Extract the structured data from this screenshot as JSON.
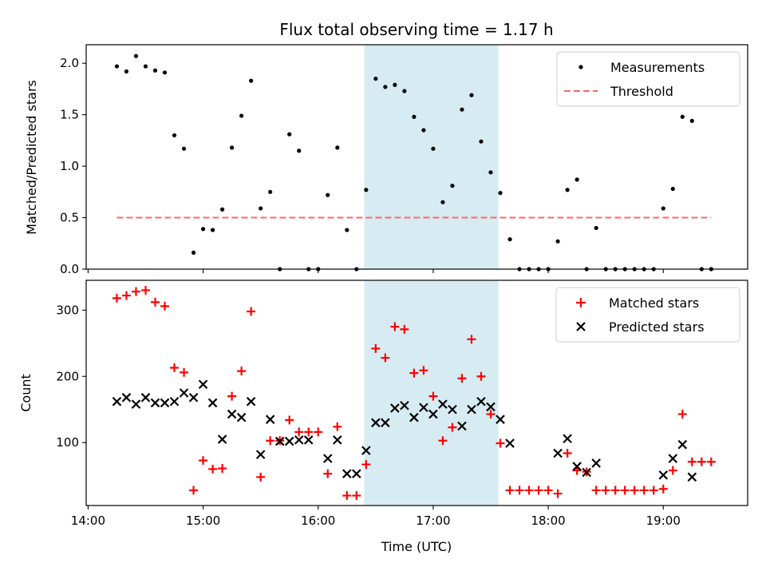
{
  "chart_data": {
    "type": "scatter",
    "title": "Flux total observing time = 1.17 h",
    "xlabel": "Time (UTC)",
    "x_ticks": [
      "14:00",
      "15:00",
      "16:00",
      "17:00",
      "18:00",
      "19:00"
    ],
    "highlight_span": {
      "start": "16:24",
      "end": "17:34",
      "color": "#add8e6"
    },
    "top": {
      "ylabel": "Matched/Predicted stars",
      "ylim": [
        0.0,
        2.18
      ],
      "yticks": [
        "0.0",
        "0.5",
        "1.0",
        "1.5",
        "2.0"
      ],
      "legend_placement": "upper right",
      "threshold": {
        "name": "Threshold",
        "value": 0.5,
        "start": "14:15",
        "end": "19:25",
        "color": "#ff6666",
        "style": "dashed"
      },
      "series": [
        {
          "name": "Measurements",
          "color": "#000000",
          "marker": "dot",
          "x": [
            "14:15",
            "14:20",
            "14:25",
            "14:30",
            "14:35",
            "14:40",
            "14:45",
            "14:50",
            "14:55",
            "15:00",
            "15:05",
            "15:10",
            "15:15",
            "15:20",
            "15:25",
            "15:30",
            "15:35",
            "15:40",
            "15:45",
            "15:50",
            "15:55",
            "16:00",
            "16:05",
            "16:10",
            "16:15",
            "16:20",
            "16:25",
            "16:30",
            "16:35",
            "16:40",
            "16:45",
            "16:50",
            "16:55",
            "17:00",
            "17:05",
            "17:10",
            "17:15",
            "17:20",
            "17:25",
            "17:30",
            "17:35",
            "17:40",
            "17:45",
            "17:50",
            "17:55",
            "18:00",
            "18:05",
            "18:10",
            "18:15",
            "18:20",
            "18:25",
            "18:30",
            "18:35",
            "18:40",
            "18:45",
            "18:50",
            "18:55",
            "19:00",
            "19:05",
            "19:10",
            "19:15",
            "19:20",
            "19:25"
          ],
          "values": [
            1.97,
            1.92,
            2.07,
            1.97,
            1.93,
            1.91,
            1.3,
            1.17,
            0.16,
            0.39,
            0.38,
            0.58,
            1.18,
            1.49,
            1.83,
            0.59,
            0.75,
            0.0,
            1.31,
            1.15,
            0.0,
            0.0,
            0.72,
            1.18,
            0.38,
            0.0,
            0.77,
            1.85,
            1.77,
            1.79,
            1.73,
            1.48,
            1.35,
            1.17,
            0.65,
            0.81,
            1.55,
            1.69,
            1.24,
            0.94,
            0.74,
            0.29,
            0.0,
            0.0,
            0.0,
            0.0,
            0.27,
            0.77,
            0.87,
            0.0,
            0.4,
            0.0,
            0.0,
            0.0,
            0.0,
            0.0,
            0.0,
            0.59,
            0.78,
            1.48,
            1.44,
            0.0,
            0.0
          ]
        }
      ]
    },
    "bottom": {
      "ylabel": "Count",
      "ylim": [
        5,
        345
      ],
      "yticks": [
        "100",
        "200",
        "300"
      ],
      "legend_placement": "upper right",
      "series": [
        {
          "name": "Matched stars",
          "color": "#ff0000",
          "marker": "plus",
          "x": [
            "14:15",
            "14:20",
            "14:25",
            "14:30",
            "14:35",
            "14:40",
            "14:45",
            "14:50",
            "14:55",
            "15:00",
            "15:05",
            "15:10",
            "15:15",
            "15:20",
            "15:25",
            "15:30",
            "15:35",
            "15:40",
            "15:45",
            "15:50",
            "15:55",
            "16:00",
            "16:05",
            "16:10",
            "16:15",
            "16:20",
            "16:25",
            "16:30",
            "16:35",
            "16:40",
            "16:45",
            "16:50",
            "16:55",
            "17:00",
            "17:05",
            "17:10",
            "17:15",
            "17:20",
            "17:25",
            "17:30",
            "17:35",
            "17:40",
            "17:45",
            "17:50",
            "17:55",
            "18:00",
            "18:05",
            "18:10",
            "18:15",
            "18:20",
            "18:25",
            "18:30",
            "18:35",
            "18:40",
            "18:45",
            "18:50",
            "18:55",
            "19:00",
            "19:05",
            "19:10",
            "19:15",
            "19:20",
            "19:25"
          ],
          "values": [
            318,
            322,
            328,
            330,
            312,
            306,
            213,
            206,
            28,
            73,
            60,
            61,
            170,
            208,
            298,
            48,
            103,
            103,
            134,
            116,
            116,
            116,
            53,
            124,
            20,
            20,
            67,
            242,
            228,
            275,
            271,
            205,
            209,
            170,
            103,
            123,
            197,
            256,
            200,
            143,
            99,
            28,
            28,
            28,
            28,
            28,
            23,
            84,
            58,
            56,
            28,
            28,
            28,
            28,
            28,
            28,
            28,
            30,
            58,
            143,
            71,
            71,
            71
          ]
        },
        {
          "name": "Predicted stars",
          "color": "#000000",
          "marker": "x",
          "x": [
            "14:15",
            "14:20",
            "14:25",
            "14:30",
            "14:35",
            "14:40",
            "14:45",
            "14:50",
            "14:55",
            "15:00",
            "15:05",
            "15:10",
            "15:15",
            "15:20",
            "15:25",
            "15:30",
            "15:35",
            "15:40",
            "15:45",
            "15:50",
            "15:55",
            "16:05",
            "16:10",
            "16:15",
            "16:20",
            "16:25",
            "16:30",
            "16:35",
            "16:40",
            "16:45",
            "16:50",
            "16:55",
            "17:00",
            "17:05",
            "17:10",
            "17:15",
            "17:20",
            "17:25",
            "17:30",
            "17:35",
            "17:40",
            "18:05",
            "18:10",
            "18:15",
            "18:20",
            "18:25",
            "19:00",
            "19:05",
            "19:10",
            "19:15"
          ],
          "values": [
            162,
            168,
            158,
            168,
            160,
            160,
            162,
            175,
            168,
            188,
            160,
            105,
            143,
            138,
            162,
            82,
            135,
            102,
            102,
            104,
            104,
            76,
            104,
            53,
            53,
            88,
            130,
            130,
            152,
            156,
            138,
            153,
            143,
            158,
            150,
            125,
            150,
            162,
            154,
            135,
            99,
            84,
            106,
            64,
            55,
            69,
            51,
            76,
            97,
            48
          ]
        }
      ]
    }
  }
}
